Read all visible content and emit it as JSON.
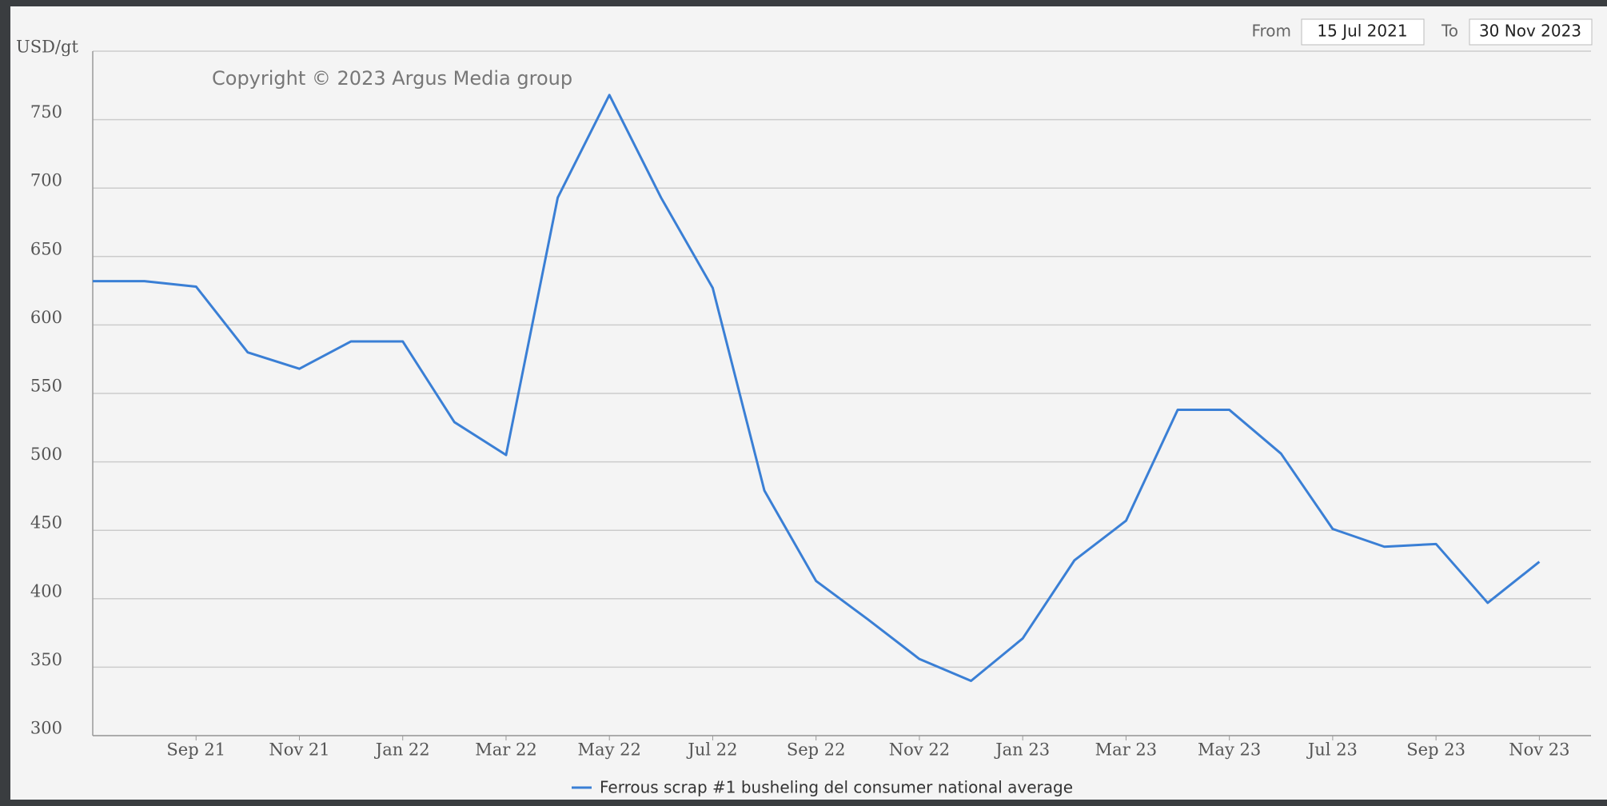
{
  "chart_data": {
    "type": "line",
    "title": "Copyright © 2023 Argus Media group",
    "y_label": "USD/gt",
    "date_range": {
      "from_label": "From",
      "from": "15 Jul 2021",
      "to_label": "To",
      "to": "30 Nov 2023"
    },
    "x": [
      "2021-07",
      "2021-08",
      "2021-09",
      "2021-10",
      "2021-11",
      "2021-12",
      "2022-01",
      "2022-02",
      "2022-03",
      "2022-04",
      "2022-05",
      "2022-06",
      "2022-07",
      "2022-08",
      "2022-09",
      "2022-10",
      "2022-11",
      "2022-12",
      "2023-01",
      "2023-02",
      "2023-03",
      "2023-04",
      "2023-05",
      "2023-06",
      "2023-07",
      "2023-08",
      "2023-09",
      "2023-10",
      "2023-11"
    ],
    "series": [
      {
        "name": "Ferrous scrap #1 busheling del consumer national average",
        "color": "#3a7fd5",
        "values": [
          632,
          632,
          628,
          580,
          568,
          588,
          588,
          529,
          505,
          693,
          768,
          693,
          627,
          479,
          413,
          385,
          356,
          340,
          371,
          428,
          457,
          538,
          538,
          506,
          451,
          438,
          440,
          397,
          427
        ]
      }
    ],
    "xlim": [
      "2021-07",
      "2023-12"
    ],
    "xticks": [
      {
        "value": "2021-09",
        "label": "Sep 21"
      },
      {
        "value": "2021-11",
        "label": "Nov 21"
      },
      {
        "value": "2022-01",
        "label": "Jan 22"
      },
      {
        "value": "2022-03",
        "label": "Mar 22"
      },
      {
        "value": "2022-05",
        "label": "May 22"
      },
      {
        "value": "2022-07",
        "label": "Jul 22"
      },
      {
        "value": "2022-09",
        "label": "Sep 22"
      },
      {
        "value": "2022-11",
        "label": "Nov 22"
      },
      {
        "value": "2023-01",
        "label": "Jan 23"
      },
      {
        "value": "2023-03",
        "label": "Mar 23"
      },
      {
        "value": "2023-05",
        "label": "May 23"
      },
      {
        "value": "2023-07",
        "label": "Jul 23"
      },
      {
        "value": "2023-09",
        "label": "Sep 23"
      },
      {
        "value": "2023-11",
        "label": "Nov 23"
      }
    ],
    "ylim": [
      300,
      800
    ],
    "yticks": [
      300,
      350,
      400,
      450,
      500,
      550,
      600,
      650,
      700,
      750
    ],
    "grid": true
  }
}
